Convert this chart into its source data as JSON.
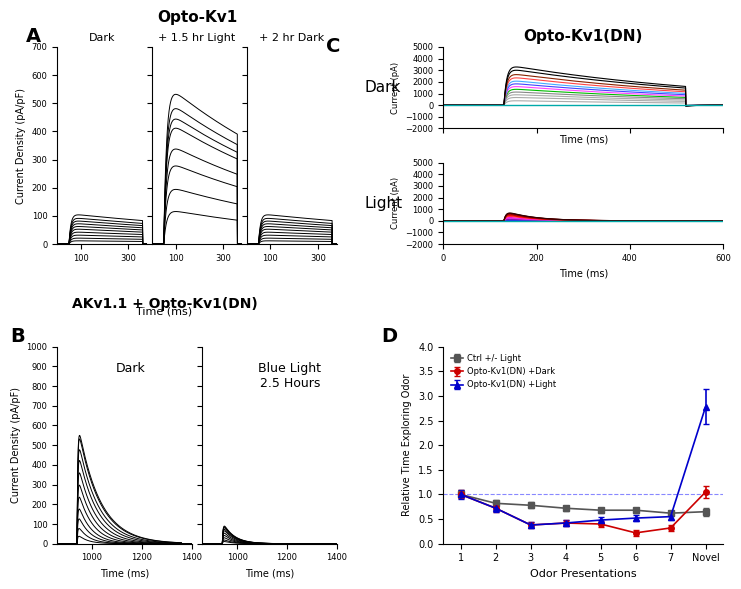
{
  "panel_A_title": "Opto-Kv1",
  "panel_A_ylabel": "Current Density (pA/pF)",
  "panel_A_xlabel": "Time (ms)",
  "panel_A_dark_label": "Dark",
  "panel_A_light_label": "+ 1.5 hr Light",
  "panel_A_dark2_label": "+ 2 hr Dark",
  "panel_A_ylim": [
    0,
    700
  ],
  "panel_A_yticks": [
    0,
    100,
    200,
    300,
    400,
    500,
    600,
    700
  ],
  "panel_A_xticks": [
    100,
    300
  ],
  "panel_A_dark_peaks": [
    12,
    22,
    33,
    44,
    55,
    65,
    75,
    85,
    95,
    108
  ],
  "panel_A_light_peaks": [
    125,
    210,
    300,
    365,
    445,
    480,
    520,
    575
  ],
  "panel_A_dark2_peaks": [
    12,
    22,
    33,
    44,
    55,
    65,
    75,
    85,
    95,
    108
  ],
  "panel_B_title": "AKv1.1 + Opto-Kv1(DN)",
  "panel_B_ylabel": "Current Density (pA/pF)",
  "panel_B_xlabel": "Time (ms)",
  "panel_B_dark_label": "Dark",
  "panel_B_light_label": "Blue Light\n2.5 Hours",
  "panel_B_ylim": [
    0,
    1000
  ],
  "panel_B_yticks": [
    0,
    100,
    200,
    300,
    400,
    500,
    600,
    700,
    800,
    900,
    1000
  ],
  "panel_B_xticks": [
    1000,
    1200,
    1400
  ],
  "panel_B_dark_peaks": [
    50,
    100,
    160,
    220,
    290,
    360,
    430,
    500,
    560,
    620,
    640
  ],
  "panel_B_light_peaks": [
    15,
    25,
    40,
    55,
    70,
    85,
    95,
    105,
    110,
    115
  ],
  "panel_C_title": "Opto-Kv1(DN)",
  "panel_C_dark_label": "Dark",
  "panel_C_light_label": "Light",
  "panel_C_ylabel": "Current (pA)",
  "panel_C_xlabel": "Time (ms)",
  "panel_C_dark_ylim": [
    -2000,
    5000
  ],
  "panel_C_light_ylim": [
    -2000,
    5000
  ],
  "panel_C_dark_yticks": [
    -2000,
    -1000,
    0,
    1000,
    2000,
    3000,
    4000,
    5000
  ],
  "panel_C_light_yticks": [
    -2000,
    -1000,
    0,
    1000,
    2000,
    3000,
    4000,
    5000
  ],
  "panel_C_xticks": [
    0,
    200,
    400,
    600
  ],
  "panel_C_dark_peaks": [
    400,
    700,
    950,
    1200,
    1450,
    1700,
    1950,
    2200,
    2500,
    2800,
    3200,
    3500
  ],
  "panel_C_light_peaks": [
    50,
    100,
    180,
    280,
    380,
    500,
    600,
    680,
    750,
    820,
    860,
    900
  ],
  "panel_C_colors_dark": [
    "#aaaaaa",
    "#aaaaaa",
    "#aaaaaa",
    "#888888",
    "#00bb00",
    "#ff44ff",
    "#4444ff",
    "#44aaff",
    "#ff4444",
    "#882200",
    "#000000",
    "#000000"
  ],
  "panel_C_colors_light": [
    "#0000cc",
    "#4444ff",
    "#8800aa",
    "#cc44cc",
    "#ff00ff",
    "#ff4444",
    "#ff0000",
    "#cc0000",
    "#aa0000",
    "#880000",
    "#550000",
    "#330000"
  ],
  "panel_D_xlabel": "Odor Presentations",
  "panel_D_ylabel": "Relative Time Exploring Odor",
  "panel_D_xlim": [
    0.5,
    8.5
  ],
  "panel_D_ylim": [
    0,
    4.0
  ],
  "panel_D_yticks": [
    0.0,
    0.5,
    1.0,
    1.5,
    2.0,
    2.5,
    3.0,
    3.5,
    4.0
  ],
  "panel_D_legend": [
    "Ctrl +/- Light",
    "Opto-Kv1(DN) +Dark",
    "Opto-Kv1(DN) +Light"
  ],
  "panel_D_ctrl_vals": [
    1.0,
    0.82,
    0.78,
    0.72,
    0.68,
    0.68,
    0.62,
    0.65
  ],
  "panel_D_ctrl_err": [
    0.08,
    0.06,
    0.06,
    0.05,
    0.05,
    0.05,
    0.05,
    0.08
  ],
  "panel_D_dark_vals": [
    1.0,
    0.72,
    0.38,
    0.42,
    0.4,
    0.22,
    0.32,
    1.05
  ],
  "panel_D_dark_err": [
    0.08,
    0.07,
    0.06,
    0.06,
    0.06,
    0.06,
    0.06,
    0.12
  ],
  "panel_D_light_vals": [
    1.0,
    0.72,
    0.38,
    0.42,
    0.48,
    0.52,
    0.55,
    2.78
  ],
  "panel_D_light_err": [
    0.1,
    0.07,
    0.06,
    0.06,
    0.06,
    0.06,
    0.06,
    0.35
  ],
  "panel_D_ctrl_color": "#555555",
  "panel_D_dark_color": "#cc0000",
  "panel_D_light_color": "#0000cc",
  "panel_D_ref_line": 1.0
}
